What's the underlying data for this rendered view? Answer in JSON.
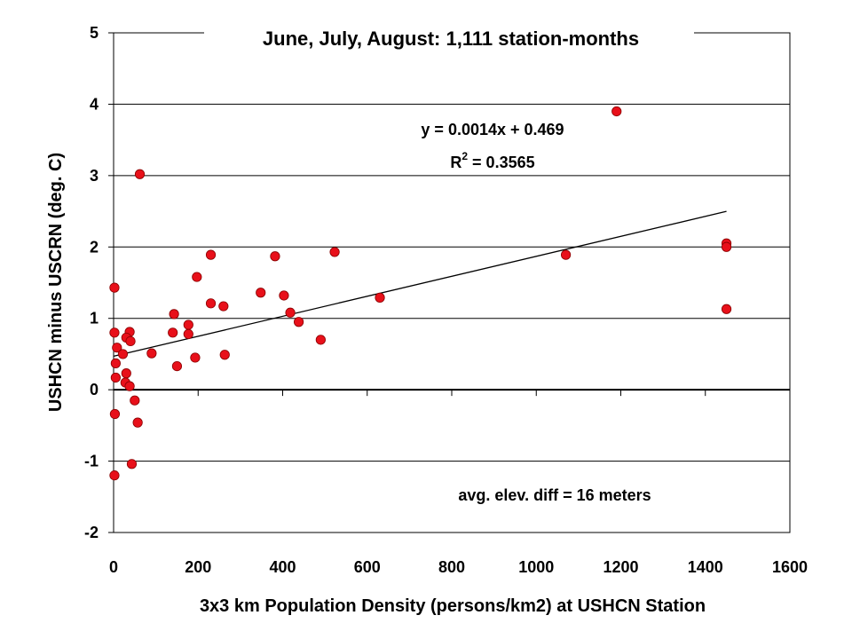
{
  "chart_data": {
    "type": "scatter",
    "title": "June, July, August: 1,111 station-months",
    "xlabel": "3x3 km Population Density (persons/km2) at USHCN Station",
    "ylabel": "USHCN minus USCRN (deg. C)",
    "xlim": [
      0,
      1600
    ],
    "ylim": [
      -2,
      5
    ],
    "x_ticks": [
      "0",
      "200",
      "400",
      "600",
      "800",
      "1000",
      "1200",
      "1400",
      "1600"
    ],
    "y_ticks": [
      "-2",
      "-1",
      "0",
      "1",
      "2",
      "3",
      "4",
      "5"
    ],
    "grid": "horizontal",
    "marker_color": "#e8101a",
    "series": [
      {
        "points": [
          {
            "x": 1190,
            "y": 3.9
          },
          {
            "x": 62,
            "y": 3.02
          },
          {
            "x": 1450,
            "y": 2.05
          },
          {
            "x": 1450,
            "y": 2.0
          },
          {
            "x": 1450,
            "y": 1.13
          },
          {
            "x": 1070,
            "y": 1.89
          },
          {
            "x": 523,
            "y": 1.93
          },
          {
            "x": 230,
            "y": 1.89
          },
          {
            "x": 382,
            "y": 1.87
          },
          {
            "x": 197,
            "y": 1.58
          },
          {
            "x": 2,
            "y": 1.43
          },
          {
            "x": 348,
            "y": 1.36
          },
          {
            "x": 403,
            "y": 1.32
          },
          {
            "x": 630,
            "y": 1.29
          },
          {
            "x": 230,
            "y": 1.21
          },
          {
            "x": 260,
            "y": 1.17
          },
          {
            "x": 143,
            "y": 1.06
          },
          {
            "x": 418,
            "y": 1.08
          },
          {
            "x": 438,
            "y": 0.95
          },
          {
            "x": 177,
            "y": 0.91
          },
          {
            "x": 2,
            "y": 0.8
          },
          {
            "x": 140,
            "y": 0.8
          },
          {
            "x": 38,
            "y": 0.81
          },
          {
            "x": 177,
            "y": 0.78
          },
          {
            "x": 30,
            "y": 0.73
          },
          {
            "x": 40,
            "y": 0.68
          },
          {
            "x": 490,
            "y": 0.7
          },
          {
            "x": 8,
            "y": 0.59
          },
          {
            "x": 90,
            "y": 0.51
          },
          {
            "x": 263,
            "y": 0.49
          },
          {
            "x": 22,
            "y": 0.5
          },
          {
            "x": 193,
            "y": 0.45
          },
          {
            "x": 5,
            "y": 0.37
          },
          {
            "x": 150,
            "y": 0.33
          },
          {
            "x": 30,
            "y": 0.23
          },
          {
            "x": 5,
            "y": 0.17
          },
          {
            "x": 28,
            "y": 0.1
          },
          {
            "x": 38,
            "y": 0.05
          },
          {
            "x": 50,
            "y": -0.15
          },
          {
            "x": 3,
            "y": -0.34
          },
          {
            "x": 57,
            "y": -0.46
          },
          {
            "x": 43,
            "y": -1.04
          },
          {
            "x": 2,
            "y": -1.2
          }
        ]
      }
    ],
    "trendline": {
      "slope": 0.0014,
      "intercept": 0.469,
      "x_range": [
        0,
        1450
      ]
    },
    "annotations": {
      "equation": "y = 0.0014x + 0.469",
      "r2_prefix": "R",
      "r2_sup": "2",
      "r2_suffix": " = 0.3565",
      "elev_note": "avg. elev. diff = 16 meters"
    }
  }
}
